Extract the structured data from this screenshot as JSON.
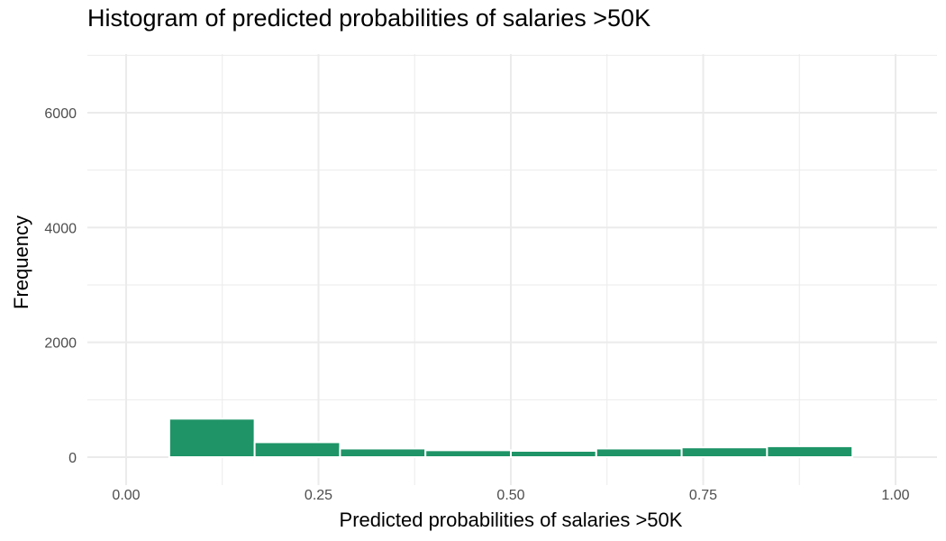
{
  "chart_data": {
    "type": "bar",
    "title": "Histogram of predicted probabilities of salaries >50K",
    "xlabel": "Predicted probabilities of salaries >50K",
    "ylabel": "Frequency",
    "xlim": [
      0.0,
      1.0
    ],
    "ylim": [
      0,
      7000
    ],
    "x_ticks": [
      "0.00",
      "0.25",
      "0.50",
      "0.75",
      "1.00"
    ],
    "y_ticks": [
      "0",
      "2000",
      "4000",
      "6000"
    ],
    "grid": true,
    "bins": [
      {
        "x0": 0.056,
        "x1": 0.167,
        "count": 670
      },
      {
        "x0": 0.167,
        "x1": 0.278,
        "count": 260
      },
      {
        "x0": 0.278,
        "x1": 0.389,
        "count": 150
      },
      {
        "x0": 0.389,
        "x1": 0.5,
        "count": 120
      },
      {
        "x0": 0.5,
        "x1": 0.611,
        "count": 110
      },
      {
        "x0": 0.611,
        "x1": 0.722,
        "count": 150
      },
      {
        "x0": 0.722,
        "x1": 0.833,
        "count": 170
      },
      {
        "x0": 0.833,
        "x1": 0.944,
        "count": 190
      }
    ],
    "bar_color": "#1e9467",
    "bar_edge_color": "#ffffff",
    "grid_color": "#ebebeb"
  }
}
